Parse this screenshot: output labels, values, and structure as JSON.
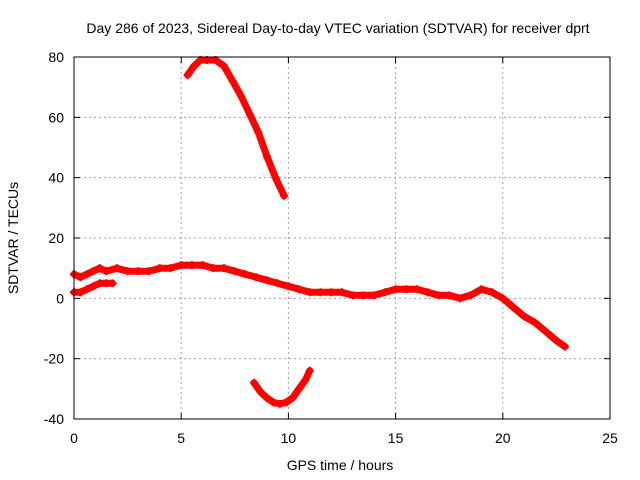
{
  "chart_data": {
    "type": "line",
    "title": "Day 286 of 2023, Sidereal Day-to-day VTEC variation (SDTVAR) for receiver dprt",
    "xlabel": "GPS time / hours",
    "ylabel": "SDTVAR / TECUs",
    "xlim": [
      0,
      25
    ],
    "ylim": [
      -40,
      80
    ],
    "grid": true,
    "x_ticks": [
      0,
      5,
      10,
      15,
      20,
      25
    ],
    "y_ticks": [
      -40,
      -20,
      0,
      20,
      40,
      60,
      80
    ],
    "series_color": "#ff0000",
    "series": [
      {
        "name": "main-trace",
        "x": [
          0.0,
          0.3,
          0.6,
          0.9,
          1.2,
          1.5,
          2.0,
          2.5,
          3.0,
          3.5,
          4.0,
          4.5,
          5.0,
          5.5,
          6.0,
          6.5,
          7.0,
          7.5,
          8.0,
          8.5,
          9.0,
          9.5,
          10.0,
          10.5,
          11.0,
          11.5,
          12.0,
          12.5,
          13.0,
          13.5,
          14.0,
          14.5,
          15.0,
          15.5,
          16.0,
          16.5,
          17.0,
          17.5,
          18.0,
          18.5,
          19.0,
          19.5,
          20.0,
          20.5,
          21.0,
          21.5,
          22.0,
          22.5,
          22.9
        ],
        "y": [
          8,
          7,
          8,
          9,
          10,
          9,
          10,
          9,
          9,
          9,
          10,
          10,
          11,
          11,
          11,
          10,
          10,
          9,
          8,
          7,
          6,
          5,
          4,
          3,
          2,
          2,
          2,
          2,
          1,
          1,
          1,
          2,
          3,
          3,
          3,
          2,
          1,
          1,
          0,
          1,
          3,
          2,
          0,
          -3,
          -6,
          -8,
          -11,
          -14,
          -16
        ]
      },
      {
        "name": "early-branch",
        "x": [
          0.0,
          0.3,
          0.6,
          0.9,
          1.2,
          1.5,
          1.8
        ],
        "y": [
          2,
          2,
          3,
          4,
          5,
          5,
          5
        ]
      },
      {
        "name": "upper-arc",
        "x": [
          5.3,
          5.6,
          5.9,
          6.2,
          6.6,
          7.0,
          7.4,
          7.8,
          8.2,
          8.6,
          9.0,
          9.4,
          9.8
        ],
        "y": [
          74,
          77,
          79,
          79,
          79,
          77,
          72,
          67,
          61,
          55,
          47,
          40,
          34
        ]
      },
      {
        "name": "lower-arc",
        "x": [
          8.4,
          8.7,
          9.0,
          9.3,
          9.6,
          9.9,
          10.2,
          10.5,
          10.8,
          11.0
        ],
        "y": [
          -28,
          -31,
          -33,
          -34.5,
          -35,
          -34.5,
          -33,
          -30,
          -27,
          -24
        ]
      }
    ]
  }
}
